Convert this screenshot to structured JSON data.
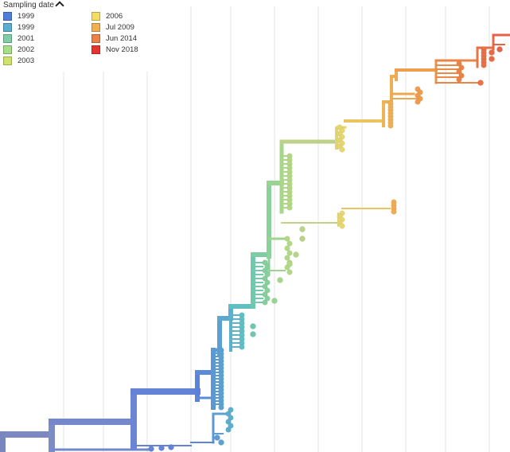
{
  "legend": {
    "title": "Sampling date",
    "items": [
      {
        "label": "1999",
        "color": "#4f7fd9"
      },
      {
        "label": "1999",
        "color": "#5aaed0"
      },
      {
        "label": "2001",
        "color": "#7fcfa6"
      },
      {
        "label": "2002",
        "color": "#a6de8a"
      },
      {
        "label": "2003",
        "color": "#cfe26c"
      },
      {
        "label": "2006",
        "color": "#f3dd63"
      },
      {
        "label": "Jul 2009",
        "color": "#f0b04f"
      },
      {
        "label": "Jun 2014",
        "color": "#ec8245"
      },
      {
        "label": "Nov 2018",
        "color": "#e8342f"
      }
    ]
  }
}
